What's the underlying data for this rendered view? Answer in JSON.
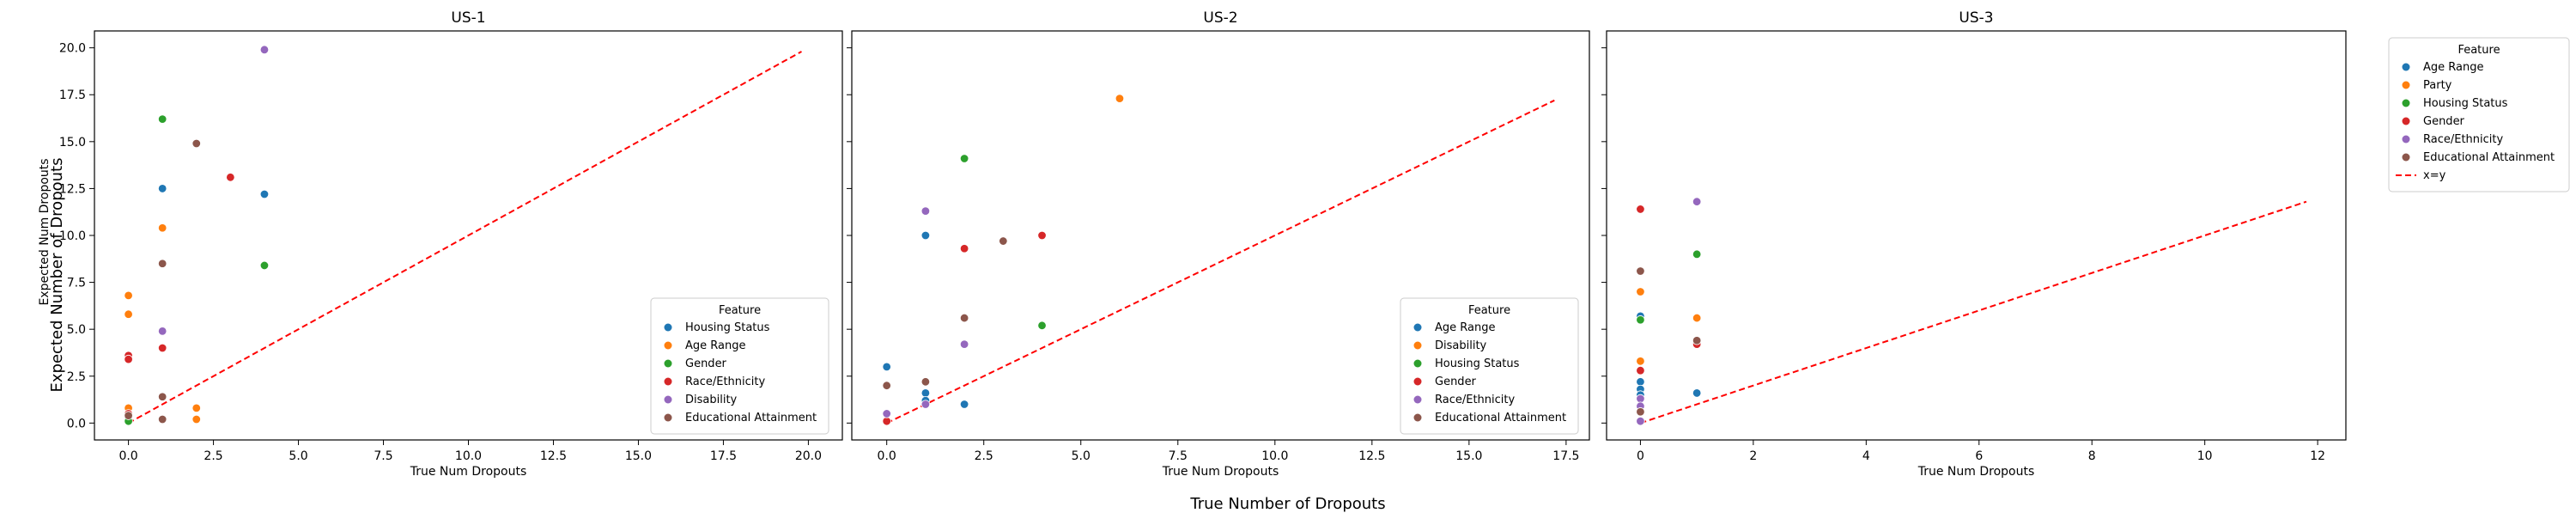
{
  "figure": {
    "sup_xlabel": "True Number of Dropouts",
    "sup_ylabel": "Expected Number of Dropouts",
    "outer_legend": {
      "title": "Feature",
      "entries": [
        {
          "label": "Age Range",
          "color": "#1f77b4",
          "kind": "dot"
        },
        {
          "label": "Party",
          "color": "#ff7f0e",
          "kind": "dot"
        },
        {
          "label": "Housing Status",
          "color": "#2ca02c",
          "kind": "dot"
        },
        {
          "label": "Gender",
          "color": "#d62728",
          "kind": "dot"
        },
        {
          "label": "Race/Ethnicity",
          "color": "#9467bd",
          "kind": "dot"
        },
        {
          "label": "Educational Attainment",
          "color": "#8c564b",
          "kind": "dot"
        },
        {
          "label": "x=y",
          "color": "#ff0000",
          "kind": "dashed-line"
        }
      ]
    }
  },
  "chart_data": [
    {
      "type": "scatter",
      "title": "US-1",
      "xlabel": "True Num Dropouts",
      "ylabel": "Expected Num Dropouts",
      "xlim": [
        -1,
        21
      ],
      "ylim": [
        -0.9,
        20.9
      ],
      "xticks": [
        "0.0",
        "2.5",
        "5.0",
        "7.5",
        "10.0",
        "12.5",
        "15.0",
        "17.5",
        "20.0"
      ],
      "xtick_values": [
        0,
        2.5,
        5,
        7.5,
        10,
        12.5,
        15,
        17.5,
        20
      ],
      "yticks": [
        "0.0",
        "2.5",
        "5.0",
        "7.5",
        "10.0",
        "12.5",
        "15.0",
        "17.5",
        "20.0"
      ],
      "ytick_values": [
        0,
        2.5,
        5,
        7.5,
        10,
        12.5,
        15,
        17.5,
        20
      ],
      "identity_line": [
        0,
        19.8
      ],
      "legend": {
        "title": "Feature",
        "position": "lower-right"
      },
      "series": [
        {
          "name": "Housing Status",
          "color": "#1f77b4",
          "points": [
            [
              0,
              0.3
            ],
            [
              1,
              12.5
            ],
            [
              4,
              12.2
            ]
          ]
        },
        {
          "name": "Age Range",
          "color": "#ff7f0e",
          "points": [
            [
              0,
              6.8
            ],
            [
              0,
              5.8
            ],
            [
              0,
              0.8
            ],
            [
              1,
              10.4
            ],
            [
              2,
              0.8
            ],
            [
              2,
              0.2
            ]
          ]
        },
        {
          "name": "Gender",
          "color": "#2ca02c",
          "points": [
            [
              0,
              0.1
            ],
            [
              1,
              16.2
            ],
            [
              4,
              8.4
            ]
          ]
        },
        {
          "name": "Race/Ethnicity",
          "color": "#d62728",
          "points": [
            [
              0,
              3.6
            ],
            [
              0,
              3.4
            ],
            [
              0,
              0.5
            ],
            [
              1,
              4.0
            ],
            [
              3,
              13.1
            ]
          ]
        },
        {
          "name": "Disability",
          "color": "#9467bd",
          "points": [
            [
              1,
              4.9
            ],
            [
              4,
              19.9
            ]
          ]
        },
        {
          "name": "Educational Attainment",
          "color": "#8c564b",
          "points": [
            [
              0,
              0.4
            ],
            [
              1,
              8.5
            ],
            [
              1,
              1.4
            ],
            [
              1,
              0.2
            ],
            [
              2,
              14.9
            ]
          ]
        }
      ]
    },
    {
      "type": "scatter",
      "title": "US-2",
      "xlabel": "True Num Dropouts",
      "ylabel": "",
      "xlim": [
        -0.9,
        18.1
      ],
      "ylim": [
        -0.9,
        20.9
      ],
      "xticks": [
        "0.0",
        "2.5",
        "5.0",
        "7.5",
        "10.0",
        "12.5",
        "15.0",
        "17.5"
      ],
      "xtick_values": [
        0,
        2.5,
        5,
        7.5,
        10,
        12.5,
        15,
        17.5
      ],
      "identity_line": [
        0,
        17.2
      ],
      "legend": {
        "title": "Feature",
        "position": "lower-right"
      },
      "series": [
        {
          "name": "Age Range",
          "color": "#1f77b4",
          "points": [
            [
              0,
              3.0
            ],
            [
              1,
              10.0
            ],
            [
              1,
              1.6
            ],
            [
              1,
              1.2
            ],
            [
              2,
              1.0
            ]
          ]
        },
        {
          "name": "Disability",
          "color": "#ff7f0e",
          "points": [
            [
              6,
              17.3
            ]
          ]
        },
        {
          "name": "Housing Status",
          "color": "#2ca02c",
          "points": [
            [
              2,
              14.1
            ],
            [
              4,
              5.2
            ]
          ]
        },
        {
          "name": "Gender",
          "color": "#d62728",
          "points": [
            [
              0,
              0.1
            ],
            [
              2,
              9.3
            ],
            [
              4,
              10.0
            ]
          ]
        },
        {
          "name": "Race/Ethnicity",
          "color": "#9467bd",
          "points": [
            [
              0,
              0.5
            ],
            [
              1,
              11.3
            ],
            [
              1,
              1.0
            ],
            [
              2,
              4.2
            ]
          ]
        },
        {
          "name": "Educational Attainment",
          "color": "#8c564b",
          "points": [
            [
              0,
              2.0
            ],
            [
              1,
              2.2
            ],
            [
              2,
              5.6
            ],
            [
              3,
              9.7
            ]
          ]
        }
      ]
    },
    {
      "type": "scatter",
      "title": "US-3",
      "xlabel": "True Num Dropouts",
      "ylabel": "",
      "xlim": [
        -0.6,
        12.5
      ],
      "ylim": [
        -0.9,
        20.9
      ],
      "xticks": [
        "0",
        "2",
        "4",
        "6",
        "8",
        "10",
        "12"
      ],
      "xtick_values": [
        0,
        2,
        4,
        6,
        8,
        10,
        12
      ],
      "identity_line": [
        0,
        11.8
      ],
      "series": [
        {
          "name": "Age Range",
          "color": "#1f77b4",
          "points": [
            [
              0,
              5.7
            ],
            [
              0,
              2.2
            ],
            [
              0,
              1.8
            ],
            [
              0,
              1.5
            ],
            [
              1,
              1.6
            ]
          ]
        },
        {
          "name": "Party",
          "color": "#ff7f0e",
          "points": [
            [
              0,
              7.0
            ],
            [
              0,
              3.3
            ],
            [
              1,
              5.6
            ]
          ]
        },
        {
          "name": "Housing Status",
          "color": "#2ca02c",
          "points": [
            [
              0,
              5.5
            ],
            [
              1,
              9.0
            ]
          ]
        },
        {
          "name": "Gender",
          "color": "#d62728",
          "points": [
            [
              0,
              11.4
            ],
            [
              0,
              2.8
            ],
            [
              1,
              4.2
            ]
          ]
        },
        {
          "name": "Race/Ethnicity",
          "color": "#9467bd",
          "points": [
            [
              0,
              1.3
            ],
            [
              0,
              0.9
            ],
            [
              0,
              0.1
            ],
            [
              1,
              11.8
            ]
          ]
        },
        {
          "name": "Educational Attainment",
          "color": "#8c564b",
          "points": [
            [
              0,
              8.1
            ],
            [
              0,
              0.6
            ],
            [
              1,
              4.4
            ]
          ]
        }
      ]
    }
  ]
}
